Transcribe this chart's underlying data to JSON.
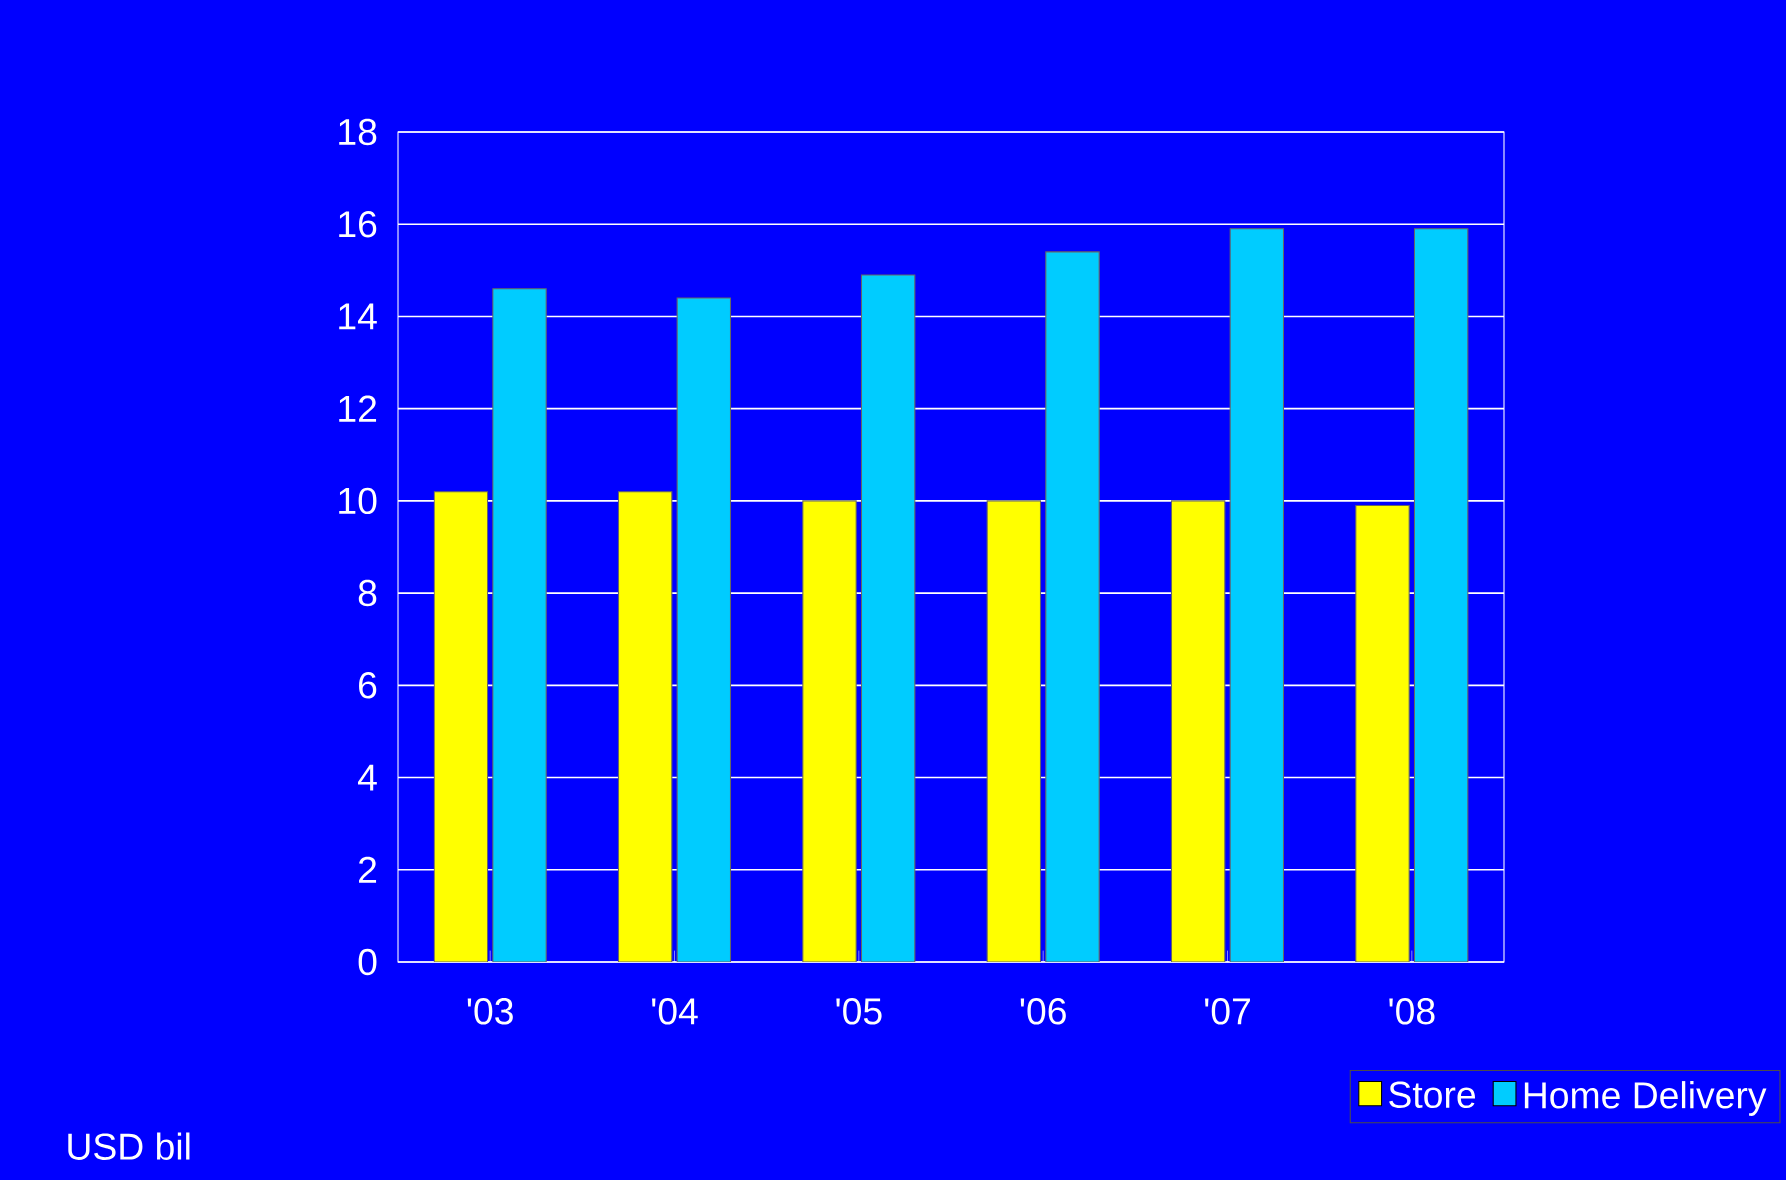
{
  "chart_data": {
    "type": "bar",
    "categories": [
      "'03",
      "'04",
      "'05",
      "'06",
      "'07",
      "'08"
    ],
    "series": [
      {
        "name": "Store",
        "color": "#ffff00",
        "values": [
          10.2,
          10.2,
          10.0,
          10.0,
          10.0,
          9.9
        ]
      },
      {
        "name": "Home Delivery",
        "color": "#00ccff",
        "values": [
          14.6,
          14.4,
          14.9,
          15.4,
          15.9,
          15.9
        ]
      }
    ],
    "ylim": [
      0,
      18
    ],
    "yticks": [
      0,
      2,
      4,
      6,
      8,
      10,
      12,
      14,
      16,
      18
    ],
    "grid": "y",
    "legend": "bottom right",
    "annotations": [
      "USD bil"
    ]
  }
}
